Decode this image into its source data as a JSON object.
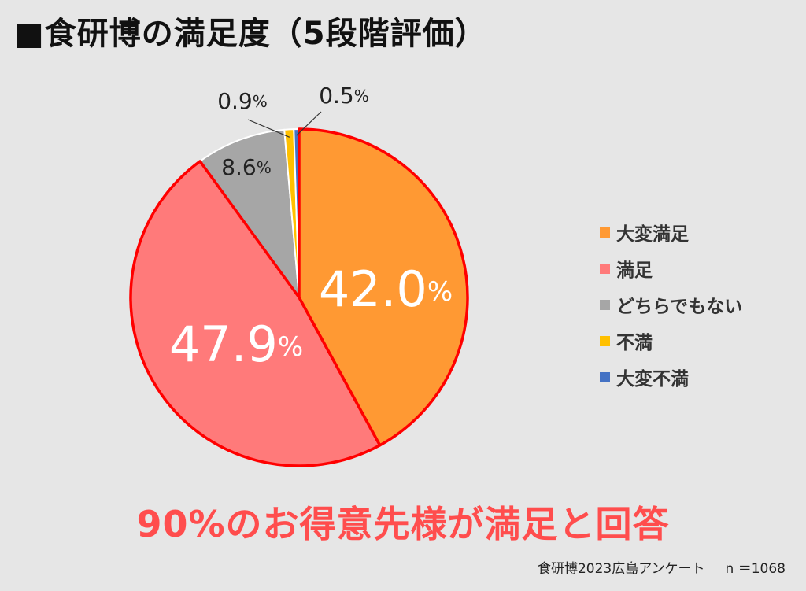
{
  "title": "■食研博の満足度（5段階評価）",
  "chart_data": {
    "type": "pie",
    "categories": [
      "大変満足",
      "満足",
      "どちらでもない",
      "不満",
      "大変不満"
    ],
    "values": [
      42.0,
      47.9,
      8.6,
      0.9,
      0.5
    ],
    "value_labels": [
      "42.0%",
      "47.9%",
      "8.6%",
      "0.9%",
      "0.5%"
    ],
    "colors": [
      "#ff9933",
      "#ff7a7a",
      "#a6a6a6",
      "#ffc000",
      "#4472c4"
    ],
    "highlighted": [
      "大変満足",
      "満足"
    ],
    "highlight_color": "#ff0000",
    "legend_position": "right",
    "start_angle": "top",
    "direction": "clockwise"
  },
  "headline": "90%のお得意先様が満足と回答",
  "source": "食研博2023広島アンケート",
  "sample_size": "n ＝1068"
}
